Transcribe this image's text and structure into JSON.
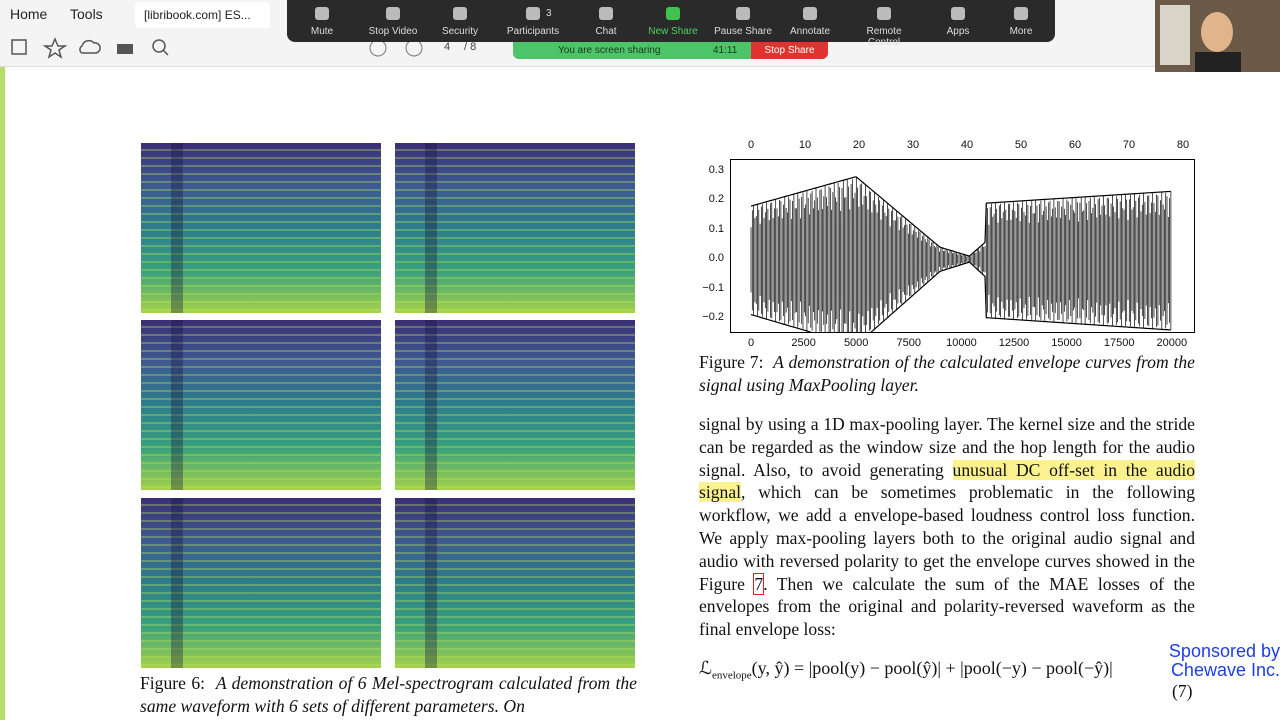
{
  "browser": {
    "tabs": [
      "Home",
      "Tools",
      "[libribook.com] ES..."
    ],
    "page_current": "4",
    "page_total": "/ 8"
  },
  "zoom_toolbar": {
    "buttons": [
      "Mute",
      "Stop Video",
      "Security",
      "Participants",
      "Chat",
      "New Share",
      "Pause Share",
      "Annotate",
      "Remote Control",
      "Apps",
      "More"
    ],
    "participants_count": "3",
    "sharing_status": "You are screen sharing",
    "timer": "41:11",
    "stop_share": "Stop Share"
  },
  "figure7": {
    "top_ticks": [
      "0",
      "10",
      "20",
      "30",
      "40",
      "50",
      "60",
      "70",
      "80"
    ],
    "left_ticks": [
      "0.3",
      "0.2",
      "0.1",
      "0.0",
      "−0.1",
      "−0.2"
    ],
    "bottom_ticks": [
      "0",
      "2500",
      "5000",
      "7500",
      "10000",
      "12500",
      "15000",
      "17500",
      "20000"
    ],
    "caption_label": "Figure 7:",
    "caption": "A demonstration of the calculated envelope curves from the signal using MaxPooling layer."
  },
  "body": {
    "text_1": "signal by using a 1D max-pooling layer. The kernel size and the stride can be regarded as the window size and the hop length for the audio signal. Also, to avoid generating ",
    "highlight": "unusual DC off-set in the audio signal",
    "text_2": ", which can be sometimes problematic in the following workflow, we add a envelope-based loudness control loss function. We apply max-pooling layers both to the original audio signal and audio with reversed polarity to get the envelope curves showed in the Figure ",
    "ref": "7",
    "text_3": ". Then we calculate the sum of the MAE losses of the envelopes from the original and polarity-reversed waveform as the final envelope loss:"
  },
  "equation": {
    "symbol": "ℒ",
    "subscript": "envelope",
    "body": "(y, ŷ) = |pool(y) − pool(ŷ)| + |pool(−y) − pool(−ŷ)|",
    "number": "(7)"
  },
  "figure6": {
    "caption_label": "Figure 6:",
    "caption": "A demonstration of 6 Mel-spectrogram calculated from the same waveform with 6 sets of different parameters. On"
  },
  "watermark": {
    "lines": [
      "Sponsored by",
      "Chewave Inc."
    ]
  }
}
